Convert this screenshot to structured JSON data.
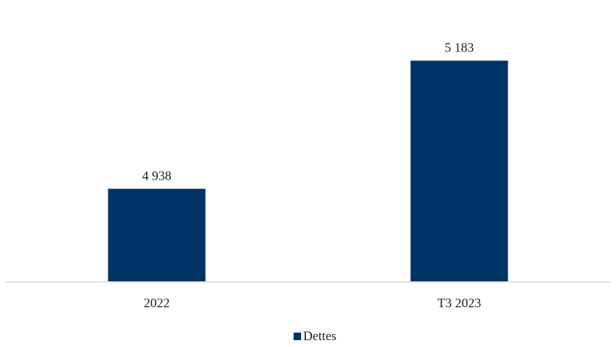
{
  "chart_data": {
    "type": "bar",
    "categories": [
      "2022",
      "T3 2023"
    ],
    "series": [
      {
        "name": "Dettes",
        "values": [
          4938,
          5183
        ],
        "value_labels": [
          "4 938",
          "5 183"
        ],
        "color": "#003366"
      }
    ],
    "title": "",
    "xlabel": "",
    "ylabel": "",
    "ylim": [
      4760,
      5240
    ],
    "grid": false,
    "legend_position": "bottom-center"
  }
}
